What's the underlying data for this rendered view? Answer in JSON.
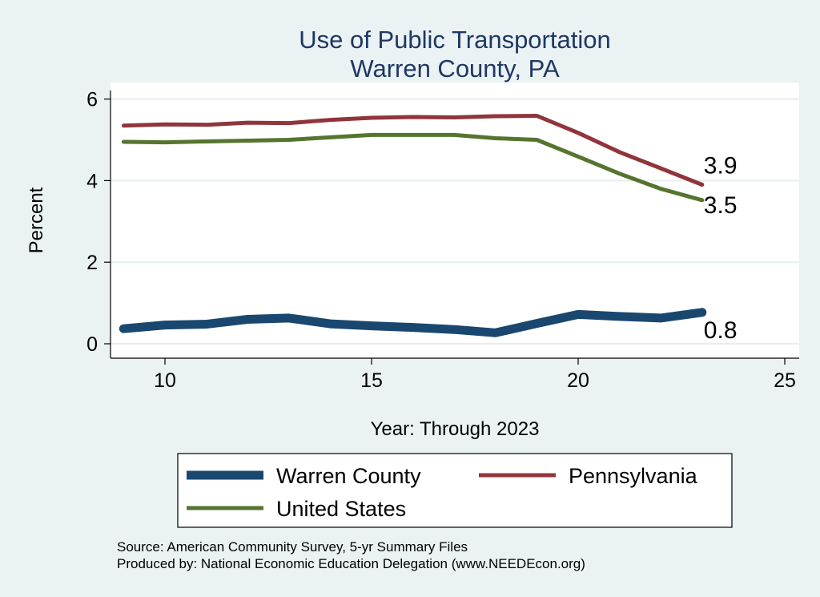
{
  "chart_data": {
    "type": "line",
    "title": "Use of Public Transportation",
    "subtitle": "Warren County, PA",
    "xlabel": "Year: Through 2023",
    "ylabel": "Percent",
    "xlim": [
      9,
      25
    ],
    "ylim": [
      0,
      6
    ],
    "xticks": [
      10,
      15,
      20,
      25
    ],
    "yticks": [
      0,
      2,
      4,
      6
    ],
    "grid": true,
    "legend_position": "bottom",
    "x": [
      9,
      10,
      11,
      12,
      13,
      14,
      15,
      16,
      17,
      18,
      19,
      20,
      21,
      22,
      23
    ],
    "series": [
      {
        "name": "Warren County",
        "color": "#1a476f",
        "width": 11,
        "values": [
          0.37,
          0.46,
          0.48,
          0.6,
          0.63,
          0.49,
          0.44,
          0.4,
          0.35,
          0.27,
          0.5,
          0.72,
          0.67,
          0.63,
          0.77
        ],
        "end_label": "0.8"
      },
      {
        "name": "Pennsylvania",
        "color": "#90353b",
        "width": 5,
        "values": [
          5.35,
          5.38,
          5.37,
          5.42,
          5.41,
          5.49,
          5.54,
          5.56,
          5.55,
          5.58,
          5.59,
          5.17,
          4.7,
          4.3,
          3.9
        ],
        "end_label": "3.9"
      },
      {
        "name": "United States",
        "color": "#55752f",
        "width": 5,
        "values": [
          4.95,
          4.94,
          4.96,
          4.98,
          5.0,
          5.06,
          5.12,
          5.12,
          5.12,
          5.04,
          5.0,
          4.59,
          4.17,
          3.8,
          3.52
        ],
        "end_label": "3.5"
      }
    ]
  },
  "notes": {
    "line1": "Source: American Community Survey, 5-yr Summary Files",
    "line2": "Produced by: National Economic Education Delegation (www.NEEDEcon.org)"
  }
}
